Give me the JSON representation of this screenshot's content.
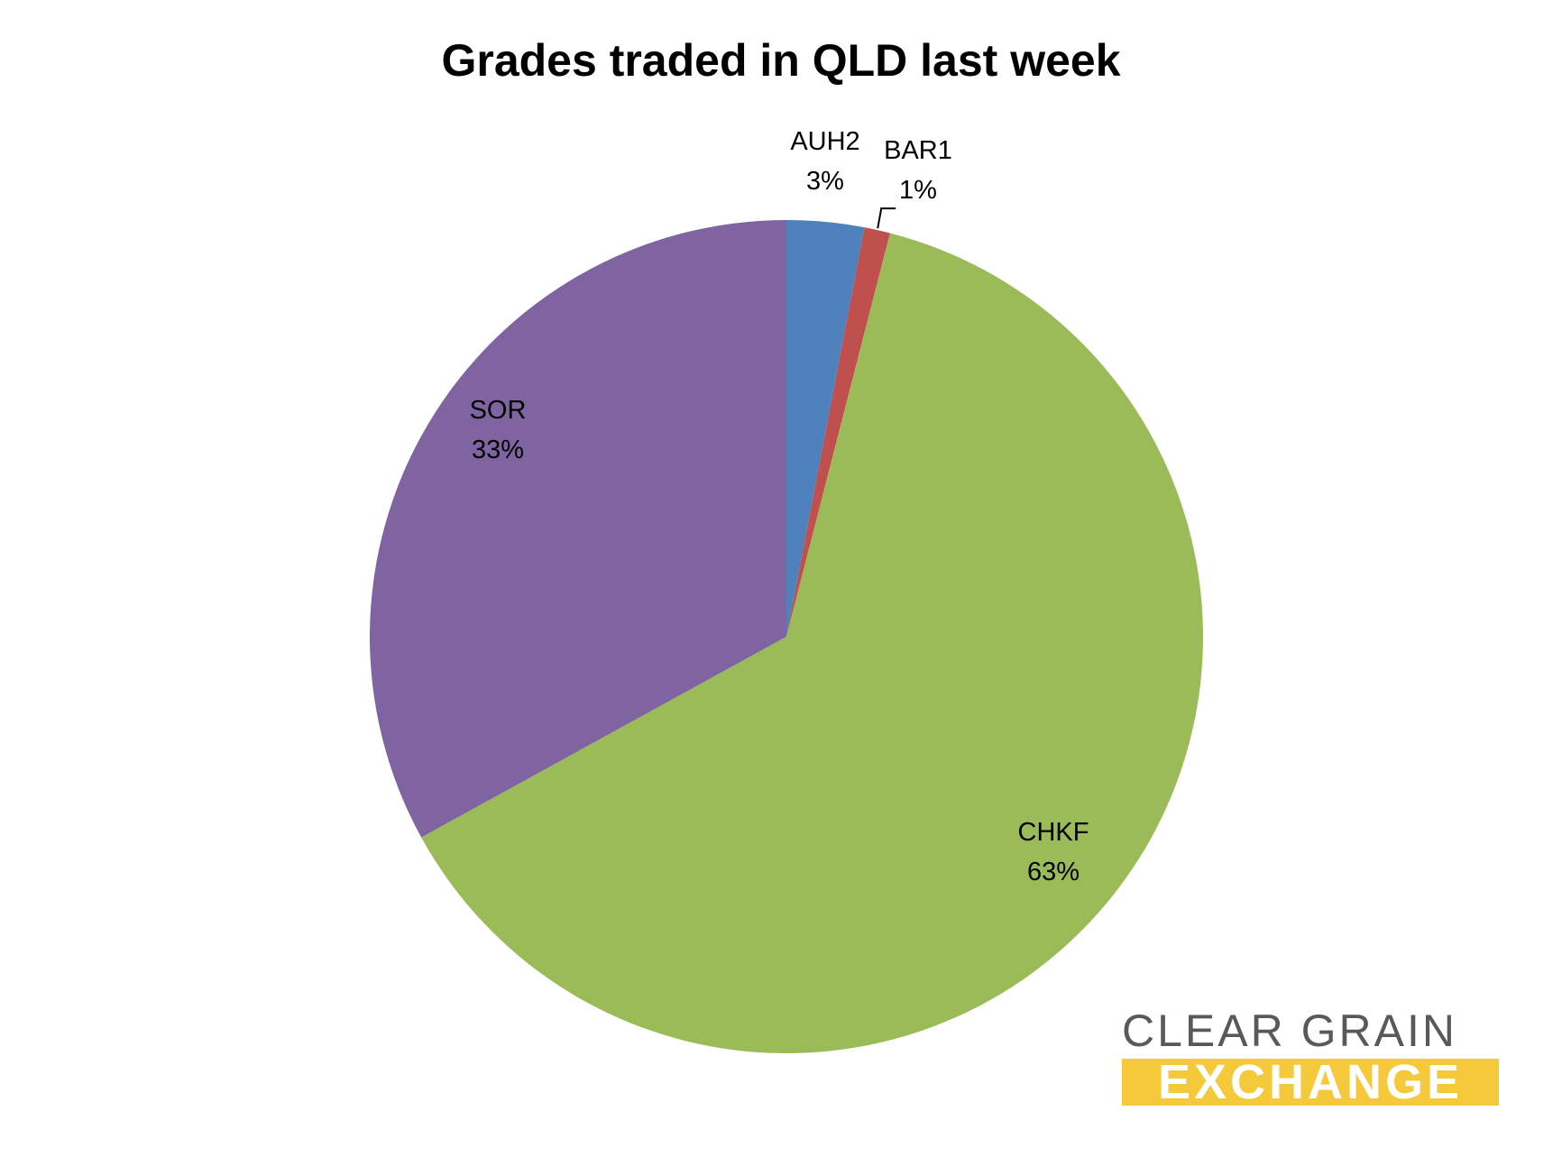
{
  "chart_data": {
    "type": "pie",
    "title": "Grades traded in QLD last week",
    "categories": [
      "AUH2",
      "BAR1",
      "CHKF",
      "SOR"
    ],
    "values": [
      3,
      1,
      63,
      33
    ],
    "value_labels": [
      "3%",
      "1%",
      "63%",
      "33%"
    ],
    "colors": [
      "#4f81bd",
      "#c0504d",
      "#9bbb59",
      "#8064a2"
    ],
    "start_angle_deg": 0,
    "direction": "clockwise"
  },
  "logo": {
    "line1": "CLEAR GRAIN",
    "line2": "EXCHANGE",
    "accent": "#f5c93a",
    "text_color": "#58595b"
  }
}
